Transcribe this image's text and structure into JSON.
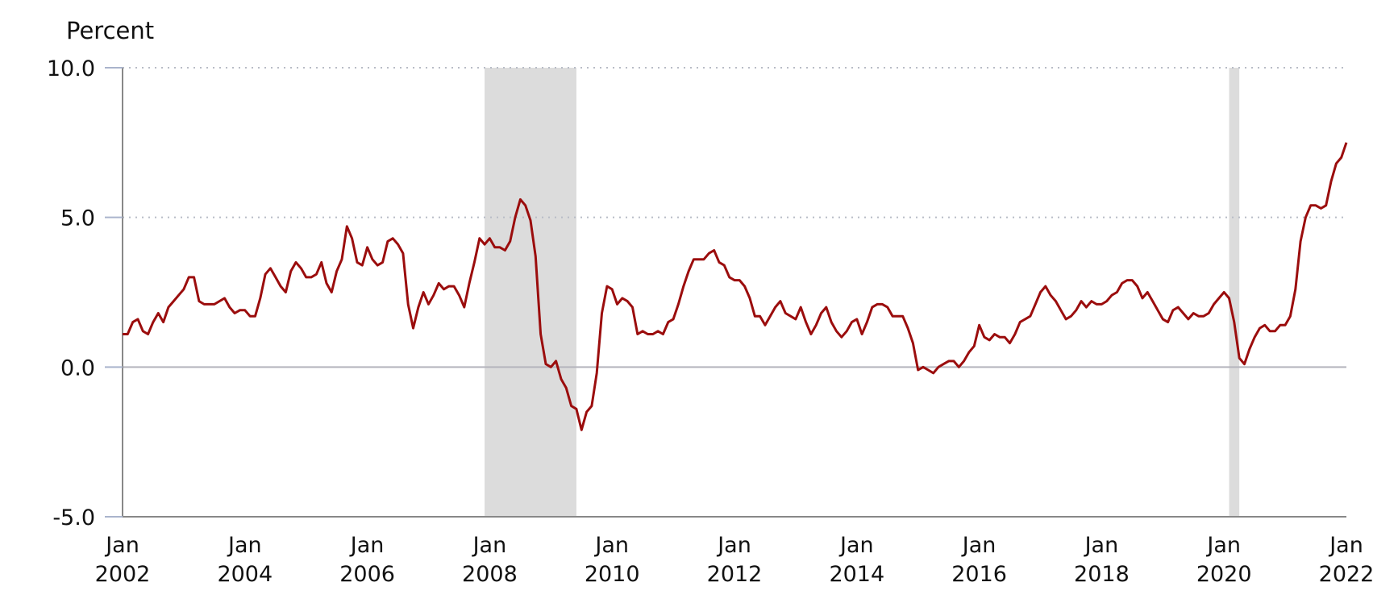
{
  "chart_data": {
    "type": "line",
    "title": "",
    "ylabel": "Percent",
    "xlabel": "",
    "ylim": [
      -5.0,
      10.0
    ],
    "xlim": [
      "2002-01",
      "2022-01"
    ],
    "y_ticks": [
      "10.0",
      "5.0",
      "0.0",
      "-5.0"
    ],
    "y_tick_values": [
      10,
      5,
      0,
      -5
    ],
    "x_ticks": [
      {
        "month": "Jan",
        "year": "2002",
        "date": "2002-01"
      },
      {
        "month": "Jan",
        "year": "2004",
        "date": "2004-01"
      },
      {
        "month": "Jan",
        "year": "2006",
        "date": "2006-01"
      },
      {
        "month": "Jan",
        "year": "2008",
        "date": "2008-01"
      },
      {
        "month": "Jan",
        "year": "2010",
        "date": "2010-01"
      },
      {
        "month": "Jan",
        "year": "2012",
        "date": "2012-01"
      },
      {
        "month": "Jan",
        "year": "2014",
        "date": "2014-01"
      },
      {
        "month": "Jan",
        "year": "2016",
        "date": "2016-01"
      },
      {
        "month": "Jan",
        "year": "2018",
        "date": "2018-01"
      },
      {
        "month": "Jan",
        "year": "2020",
        "date": "2020-01"
      },
      {
        "month": "Jan",
        "year": "2022",
        "date": "2022-01"
      }
    ],
    "grid": "dotted horizontal",
    "legend": "none",
    "line_color": "#9b0d0d",
    "recession_color": "#dcdcdc",
    "recessions": [
      {
        "start": "2007-12",
        "end": "2009-06"
      },
      {
        "start": "2020-02",
        "end": "2020-04"
      }
    ],
    "series": [
      {
        "points": [
          [
            "2002-01",
            1.1
          ],
          [
            "2002-02",
            1.1
          ],
          [
            "2002-03",
            1.5
          ],
          [
            "2002-04",
            1.6
          ],
          [
            "2002-05",
            1.2
          ],
          [
            "2002-06",
            1.1
          ],
          [
            "2002-07",
            1.5
          ],
          [
            "2002-08",
            1.8
          ],
          [
            "2002-09",
            1.5
          ],
          [
            "2002-10",
            2.0
          ],
          [
            "2002-11",
            2.2
          ],
          [
            "2002-12",
            2.4
          ],
          [
            "2003-01",
            2.6
          ],
          [
            "2003-02",
            3.0
          ],
          [
            "2003-03",
            3.0
          ],
          [
            "2003-04",
            2.2
          ],
          [
            "2003-05",
            2.1
          ],
          [
            "2003-06",
            2.1
          ],
          [
            "2003-07",
            2.1
          ],
          [
            "2003-08",
            2.2
          ],
          [
            "2003-09",
            2.3
          ],
          [
            "2003-10",
            2.0
          ],
          [
            "2003-11",
            1.8
          ],
          [
            "2003-12",
            1.9
          ],
          [
            "2004-01",
            1.9
          ],
          [
            "2004-02",
            1.7
          ],
          [
            "2004-03",
            1.7
          ],
          [
            "2004-04",
            2.3
          ],
          [
            "2004-05",
            3.1
          ],
          [
            "2004-06",
            3.3
          ],
          [
            "2004-07",
            3.0
          ],
          [
            "2004-08",
            2.7
          ],
          [
            "2004-09",
            2.5
          ],
          [
            "2004-10",
            3.2
          ],
          [
            "2004-11",
            3.5
          ],
          [
            "2004-12",
            3.3
          ],
          [
            "2005-01",
            3.0
          ],
          [
            "2005-02",
            3.0
          ],
          [
            "2005-03",
            3.1
          ],
          [
            "2005-04",
            3.5
          ],
          [
            "2005-05",
            2.8
          ],
          [
            "2005-06",
            2.5
          ],
          [
            "2005-07",
            3.2
          ],
          [
            "2005-08",
            3.6
          ],
          [
            "2005-09",
            4.7
          ],
          [
            "2005-10",
            4.3
          ],
          [
            "2005-11",
            3.5
          ],
          [
            "2005-12",
            3.4
          ],
          [
            "2006-01",
            4.0
          ],
          [
            "2006-02",
            3.6
          ],
          [
            "2006-03",
            3.4
          ],
          [
            "2006-04",
            3.5
          ],
          [
            "2006-05",
            4.2
          ],
          [
            "2006-06",
            4.3
          ],
          [
            "2006-07",
            4.1
          ],
          [
            "2006-08",
            3.8
          ],
          [
            "2006-09",
            2.1
          ],
          [
            "2006-10",
            1.3
          ],
          [
            "2006-11",
            2.0
          ],
          [
            "2006-12",
            2.5
          ],
          [
            "2007-01",
            2.1
          ],
          [
            "2007-02",
            2.4
          ],
          [
            "2007-03",
            2.8
          ],
          [
            "2007-04",
            2.6
          ],
          [
            "2007-05",
            2.7
          ],
          [
            "2007-06",
            2.7
          ],
          [
            "2007-07",
            2.4
          ],
          [
            "2007-08",
            2.0
          ],
          [
            "2007-09",
            2.8
          ],
          [
            "2007-10",
            3.5
          ],
          [
            "2007-11",
            4.3
          ],
          [
            "2007-12",
            4.1
          ],
          [
            "2008-01",
            4.3
          ],
          [
            "2008-02",
            4.0
          ],
          [
            "2008-03",
            4.0
          ],
          [
            "2008-04",
            3.9
          ],
          [
            "2008-05",
            4.2
          ],
          [
            "2008-06",
            5.0
          ],
          [
            "2008-07",
            5.6
          ],
          [
            "2008-08",
            5.4
          ],
          [
            "2008-09",
            4.9
          ],
          [
            "2008-10",
            3.7
          ],
          [
            "2008-11",
            1.1
          ],
          [
            "2008-12",
            0.1
          ],
          [
            "2009-01",
            0.0
          ],
          [
            "2009-02",
            0.2
          ],
          [
            "2009-03",
            -0.4
          ],
          [
            "2009-04",
            -0.7
          ],
          [
            "2009-05",
            -1.3
          ],
          [
            "2009-06",
            -1.4
          ],
          [
            "2009-07",
            -2.1
          ],
          [
            "2009-08",
            -1.5
          ],
          [
            "2009-09",
            -1.3
          ],
          [
            "2009-10",
            -0.2
          ],
          [
            "2009-11",
            1.8
          ],
          [
            "2009-12",
            2.7
          ],
          [
            "2010-01",
            2.6
          ],
          [
            "2010-02",
            2.1
          ],
          [
            "2010-03",
            2.3
          ],
          [
            "2010-04",
            2.2
          ],
          [
            "2010-05",
            2.0
          ],
          [
            "2010-06",
            1.1
          ],
          [
            "2010-07",
            1.2
          ],
          [
            "2010-08",
            1.1
          ],
          [
            "2010-09",
            1.1
          ],
          [
            "2010-10",
            1.2
          ],
          [
            "2010-11",
            1.1
          ],
          [
            "2010-12",
            1.5
          ],
          [
            "2011-01",
            1.6
          ],
          [
            "2011-02",
            2.1
          ],
          [
            "2011-03",
            2.7
          ],
          [
            "2011-04",
            3.2
          ],
          [
            "2011-05",
            3.6
          ],
          [
            "2011-06",
            3.6
          ],
          [
            "2011-07",
            3.6
          ],
          [
            "2011-08",
            3.8
          ],
          [
            "2011-09",
            3.9
          ],
          [
            "2011-10",
            3.5
          ],
          [
            "2011-11",
            3.4
          ],
          [
            "2011-12",
            3.0
          ],
          [
            "2012-01",
            2.9
          ],
          [
            "2012-02",
            2.9
          ],
          [
            "2012-03",
            2.7
          ],
          [
            "2012-04",
            2.3
          ],
          [
            "2012-05",
            1.7
          ],
          [
            "2012-06",
            1.7
          ],
          [
            "2012-07",
            1.4
          ],
          [
            "2012-08",
            1.7
          ],
          [
            "2012-09",
            2.0
          ],
          [
            "2012-10",
            2.2
          ],
          [
            "2012-11",
            1.8
          ],
          [
            "2012-12",
            1.7
          ],
          [
            "2013-01",
            1.6
          ],
          [
            "2013-02",
            2.0
          ],
          [
            "2013-03",
            1.5
          ],
          [
            "2013-04",
            1.1
          ],
          [
            "2013-05",
            1.4
          ],
          [
            "2013-06",
            1.8
          ],
          [
            "2013-07",
            2.0
          ],
          [
            "2013-08",
            1.5
          ],
          [
            "2013-09",
            1.2
          ],
          [
            "2013-10",
            1.0
          ],
          [
            "2013-11",
            1.2
          ],
          [
            "2013-12",
            1.5
          ],
          [
            "2014-01",
            1.6
          ],
          [
            "2014-02",
            1.1
          ],
          [
            "2014-03",
            1.5
          ],
          [
            "2014-04",
            2.0
          ],
          [
            "2014-05",
            2.1
          ],
          [
            "2014-06",
            2.1
          ],
          [
            "2014-07",
            2.0
          ],
          [
            "2014-08",
            1.7
          ],
          [
            "2014-09",
            1.7
          ],
          [
            "2014-10",
            1.7
          ],
          [
            "2014-11",
            1.3
          ],
          [
            "2014-12",
            0.8
          ],
          [
            "2015-01",
            -0.1
          ],
          [
            "2015-02",
            0.0
          ],
          [
            "2015-03",
            -0.1
          ],
          [
            "2015-04",
            -0.2
          ],
          [
            "2015-05",
            0.0
          ],
          [
            "2015-06",
            0.1
          ],
          [
            "2015-07",
            0.2
          ],
          [
            "2015-08",
            0.2
          ],
          [
            "2015-09",
            0.0
          ],
          [
            "2015-10",
            0.2
          ],
          [
            "2015-11",
            0.5
          ],
          [
            "2015-12",
            0.7
          ],
          [
            "2016-01",
            1.4
          ],
          [
            "2016-02",
            1.0
          ],
          [
            "2016-03",
            0.9
          ],
          [
            "2016-04",
            1.1
          ],
          [
            "2016-05",
            1.0
          ],
          [
            "2016-06",
            1.0
          ],
          [
            "2016-07",
            0.8
          ],
          [
            "2016-08",
            1.1
          ],
          [
            "2016-09",
            1.5
          ],
          [
            "2016-10",
            1.6
          ],
          [
            "2016-11",
            1.7
          ],
          [
            "2016-12",
            2.1
          ],
          [
            "2017-01",
            2.5
          ],
          [
            "2017-02",
            2.7
          ],
          [
            "2017-03",
            2.4
          ],
          [
            "2017-04",
            2.2
          ],
          [
            "2017-05",
            1.9
          ],
          [
            "2017-06",
            1.6
          ],
          [
            "2017-07",
            1.7
          ],
          [
            "2017-08",
            1.9
          ],
          [
            "2017-09",
            2.2
          ],
          [
            "2017-10",
            2.0
          ],
          [
            "2017-11",
            2.2
          ],
          [
            "2017-12",
            2.1
          ],
          [
            "2018-01",
            2.1
          ],
          [
            "2018-02",
            2.2
          ],
          [
            "2018-03",
            2.4
          ],
          [
            "2018-04",
            2.5
          ],
          [
            "2018-05",
            2.8
          ],
          [
            "2018-06",
            2.9
          ],
          [
            "2018-07",
            2.9
          ],
          [
            "2018-08",
            2.7
          ],
          [
            "2018-09",
            2.3
          ],
          [
            "2018-10",
            2.5
          ],
          [
            "2018-11",
            2.2
          ],
          [
            "2018-12",
            1.9
          ],
          [
            "2019-01",
            1.6
          ],
          [
            "2019-02",
            1.5
          ],
          [
            "2019-03",
            1.9
          ],
          [
            "2019-04",
            2.0
          ],
          [
            "2019-05",
            1.8
          ],
          [
            "2019-06",
            1.6
          ],
          [
            "2019-07",
            1.8
          ],
          [
            "2019-08",
            1.7
          ],
          [
            "2019-09",
            1.7
          ],
          [
            "2019-10",
            1.8
          ],
          [
            "2019-11",
            2.1
          ],
          [
            "2019-12",
            2.3
          ],
          [
            "2020-01",
            2.5
          ],
          [
            "2020-02",
            2.3
          ],
          [
            "2020-03",
            1.5
          ],
          [
            "2020-04",
            0.3
          ],
          [
            "2020-05",
            0.1
          ],
          [
            "2020-06",
            0.6
          ],
          [
            "2020-07",
            1.0
          ],
          [
            "2020-08",
            1.3
          ],
          [
            "2020-09",
            1.4
          ],
          [
            "2020-10",
            1.2
          ],
          [
            "2020-11",
            1.2
          ],
          [
            "2020-12",
            1.4
          ],
          [
            "2021-01",
            1.4
          ],
          [
            "2021-02",
            1.7
          ],
          [
            "2021-03",
            2.6
          ],
          [
            "2021-04",
            4.2
          ],
          [
            "2021-05",
            5.0
          ],
          [
            "2021-06",
            5.4
          ],
          [
            "2021-07",
            5.4
          ],
          [
            "2021-08",
            5.3
          ],
          [
            "2021-09",
            5.4
          ],
          [
            "2021-10",
            6.2
          ],
          [
            "2021-11",
            6.8
          ],
          [
            "2021-12",
            7.0
          ],
          [
            "2022-01",
            7.5
          ]
        ]
      }
    ]
  }
}
